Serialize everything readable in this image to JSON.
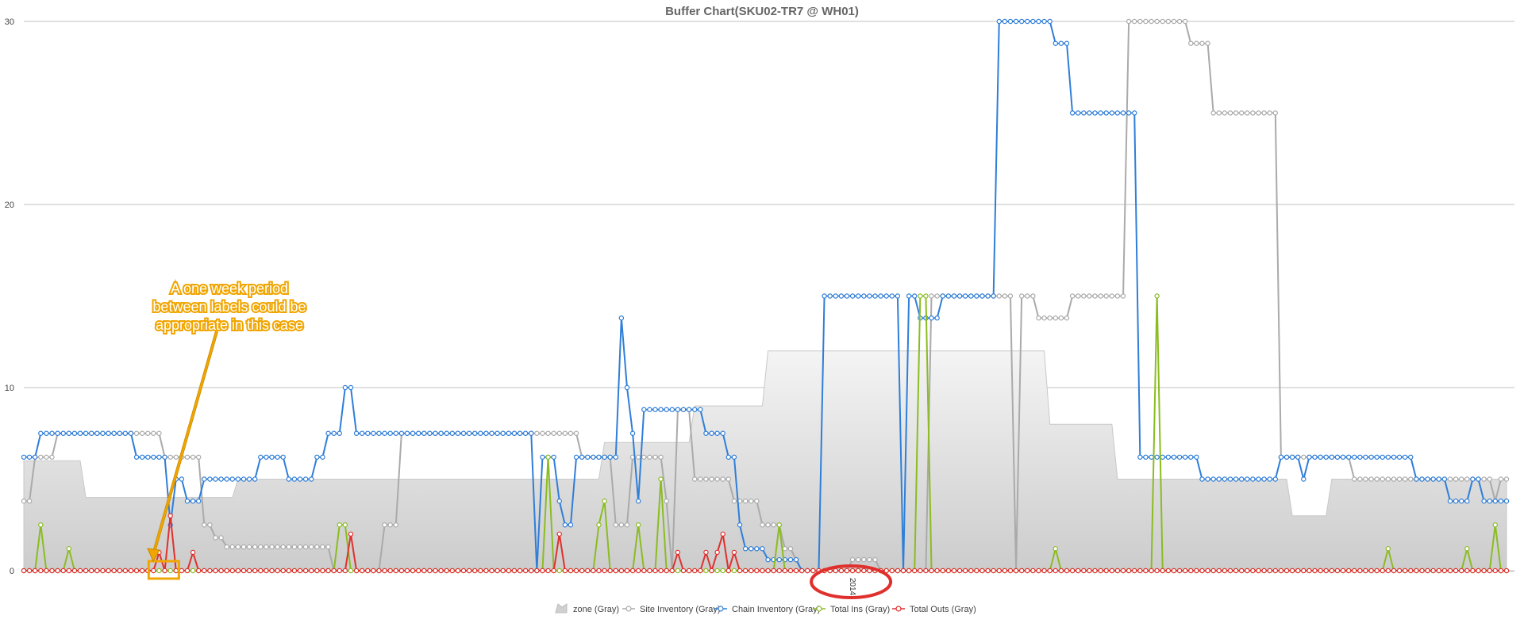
{
  "chart_data": {
    "type": "line",
    "title": "Buffer Chart(SKU02-TR7 @ WH01)",
    "xlabel": "",
    "ylabel": "",
    "ylim": [
      0,
      30
    ],
    "yticks": [
      0,
      10,
      20,
      30
    ],
    "x_tick_labels": [
      {
        "index": 147,
        "label": "2014"
      }
    ],
    "grid": true,
    "legend_position": "bottom",
    "n_points": 264,
    "series": [
      {
        "name": "zone (Gray)",
        "kind": "area",
        "color": "#c8c8c8",
        "runs": [
          [
            0,
            10,
            6
          ],
          [
            11,
            37,
            4
          ],
          [
            38,
            102,
            5
          ],
          [
            103,
            118,
            7
          ],
          [
            119,
            131,
            9
          ],
          [
            132,
            181,
            12
          ],
          [
            182,
            193,
            8
          ],
          [
            194,
            224,
            5
          ],
          [
            225,
            231,
            3
          ],
          [
            232,
            263,
            5
          ]
        ]
      },
      {
        "name": "Site Inventory (Gray)",
        "kind": "line",
        "color": "#aaaaaa",
        "runs": [
          [
            0,
            1,
            3.8
          ],
          [
            2,
            5,
            6.2
          ],
          [
            6,
            24,
            7.5
          ],
          [
            25,
            31,
            6.2
          ],
          [
            32,
            33,
            2.5
          ],
          [
            34,
            35,
            1.8
          ],
          [
            36,
            54,
            1.3
          ],
          [
            55,
            63,
            0
          ],
          [
            64,
            66,
            2.5
          ],
          [
            67,
            98,
            7.5
          ],
          [
            99,
            104,
            6.2
          ],
          [
            105,
            107,
            2.5
          ],
          [
            108,
            113,
            6.2
          ],
          [
            114,
            114,
            3.8
          ],
          [
            115,
            115,
            0
          ],
          [
            116,
            118,
            8.8
          ],
          [
            119,
            125,
            5
          ],
          [
            126,
            130,
            3.8
          ],
          [
            131,
            134,
            2.5
          ],
          [
            135,
            136,
            1.2
          ],
          [
            137,
            137,
            0.6
          ],
          [
            138,
            146,
            0
          ],
          [
            147,
            151,
            0.6
          ],
          [
            152,
            160,
            0
          ],
          [
            161,
            175,
            15
          ],
          [
            176,
            176,
            0
          ],
          [
            177,
            179,
            15
          ],
          [
            180,
            185,
            13.8
          ],
          [
            186,
            193,
            15
          ],
          [
            194,
            195,
            15
          ],
          [
            196,
            206,
            30
          ],
          [
            207,
            210,
            28.8
          ],
          [
            211,
            222,
            25
          ],
          [
            223,
            235,
            6.2
          ],
          [
            236,
            260,
            5
          ],
          [
            261,
            261,
            3.8
          ],
          [
            262,
            263,
            5
          ]
        ]
      },
      {
        "name": "Chain Inventory (Gray)",
        "kind": "line",
        "color": "#2f7ed8",
        "runs": [
          [
            0,
            2,
            6.2
          ],
          [
            3,
            19,
            7.5
          ],
          [
            20,
            25,
            6.2
          ],
          [
            26,
            26,
            2.5
          ],
          [
            27,
            28,
            5
          ],
          [
            29,
            31,
            3.8
          ],
          [
            32,
            41,
            5
          ],
          [
            42,
            46,
            6.2
          ],
          [
            47,
            51,
            5
          ],
          [
            52,
            53,
            6.2
          ],
          [
            54,
            56,
            7.5
          ],
          [
            57,
            58,
            10
          ],
          [
            59,
            90,
            7.5
          ],
          [
            91,
            91,
            0
          ],
          [
            92,
            94,
            6.2
          ],
          [
            95,
            95,
            3.8
          ],
          [
            96,
            97,
            2.5
          ],
          [
            98,
            105,
            6.2
          ],
          [
            106,
            106,
            13.8
          ],
          [
            107,
            107,
            10
          ],
          [
            108,
            108,
            7.5
          ],
          [
            109,
            109,
            3.8
          ],
          [
            110,
            120,
            8.8
          ],
          [
            121,
            124,
            7.5
          ],
          [
            125,
            126,
            6.2
          ],
          [
            127,
            127,
            2.5
          ],
          [
            128,
            131,
            1.2
          ],
          [
            132,
            137,
            0.6
          ],
          [
            138,
            141,
            0
          ],
          [
            142,
            155,
            15
          ],
          [
            156,
            156,
            0
          ],
          [
            157,
            158,
            15
          ],
          [
            159,
            162,
            13.8
          ],
          [
            163,
            172,
            15
          ],
          [
            173,
            173,
            30
          ],
          [
            174,
            182,
            30
          ],
          [
            183,
            185,
            28.8
          ],
          [
            186,
            197,
            25
          ],
          [
            198,
            208,
            6.2
          ],
          [
            209,
            222,
            5
          ],
          [
            223,
            226,
            6.2
          ],
          [
            227,
            227,
            5
          ],
          [
            228,
            246,
            6.2
          ],
          [
            247,
            252,
            5
          ],
          [
            253,
            256,
            3.8
          ],
          [
            257,
            258,
            5
          ],
          [
            259,
            263,
            3.8
          ]
        ]
      },
      {
        "name": "Total Ins (Gray)",
        "kind": "line",
        "color": "#8bbc21",
        "peaks": [
          [
            3,
            2.5
          ],
          [
            8,
            1.2
          ],
          [
            56,
            2.5
          ],
          [
            57,
            2.5
          ],
          [
            93,
            6.2
          ],
          [
            102,
            2.5
          ],
          [
            103,
            3.8
          ],
          [
            109,
            2.5
          ],
          [
            113,
            5
          ],
          [
            134,
            2.5
          ],
          [
            159,
            15
          ],
          [
            160,
            15
          ],
          [
            183,
            1.2
          ],
          [
            201,
            15
          ],
          [
            242,
            1.2
          ],
          [
            256,
            1.2
          ],
          [
            261,
            2.5
          ]
        ]
      },
      {
        "name": "Total Outs (Gray)",
        "kind": "line",
        "color": "#e0302d",
        "peaks": [
          [
            24,
            1
          ],
          [
            26,
            3
          ],
          [
            30,
            1
          ],
          [
            58,
            2
          ],
          [
            95,
            2
          ],
          [
            116,
            1
          ],
          [
            121,
            1
          ],
          [
            123,
            1
          ],
          [
            124,
            2
          ],
          [
            126,
            1
          ]
        ]
      }
    ]
  },
  "annotation": {
    "callout_lines": [
      "A one week period",
      "between labels could be",
      "appropriate in this case"
    ],
    "callout_color": "#f0a500",
    "circle_color": "#e0302d"
  }
}
